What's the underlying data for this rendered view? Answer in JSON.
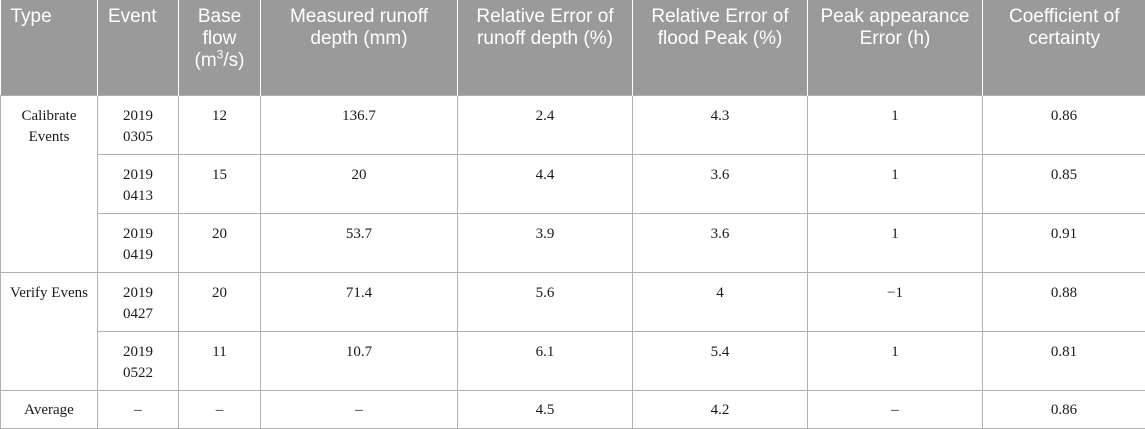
{
  "headers": {
    "type": "Type",
    "event": "Event",
    "base_flow_pre": "Base flow (m",
    "base_flow_sup": "3",
    "base_flow_post": "/s)",
    "measured": "Measured runoff depth (mm)",
    "rel_err_depth": "Relative Error of runoff depth (%)",
    "rel_err_peak": "Relative Error of flood Peak (%)",
    "peak_time_err": "Peak appearance Error (h)",
    "coef": "Coefficient of certainty"
  },
  "groups": {
    "calibrate": "Calibrate Events",
    "verify": "Verify Evens"
  },
  "rows": [
    {
      "event_year": "2019",
      "event_date": "0305",
      "base_flow": "12",
      "measured": "136.7",
      "rel_depth": "2.4",
      "rel_peak": "4.3",
      "peak_err": "1",
      "coef": "0.86"
    },
    {
      "event_year": "2019",
      "event_date": "0413",
      "base_flow": "15",
      "measured": "20",
      "rel_depth": "4.4",
      "rel_peak": "3.6",
      "peak_err": "1",
      "coef": "0.85"
    },
    {
      "event_year": "2019",
      "event_date": "0419",
      "base_flow": "20",
      "measured": "53.7",
      "rel_depth": "3.9",
      "rel_peak": "3.6",
      "peak_err": "1",
      "coef": "0.91"
    },
    {
      "event_year": "2019",
      "event_date": "0427",
      "base_flow": "20",
      "measured": "71.4",
      "rel_depth": "5.6",
      "rel_peak": "4",
      "peak_err": "−1",
      "coef": "0.88"
    },
    {
      "event_year": "2019",
      "event_date": "0522",
      "base_flow": "11",
      "measured": "10.7",
      "rel_depth": "6.1",
      "rel_peak": "5.4",
      "peak_err": "1",
      "coef": "0.81"
    }
  ],
  "average": {
    "label": "Average",
    "event": "–",
    "base_flow": "–",
    "measured": "–",
    "rel_depth": "4.5",
    "rel_peak": "4.2",
    "peak_err": "–",
    "coef": "0.86"
  }
}
